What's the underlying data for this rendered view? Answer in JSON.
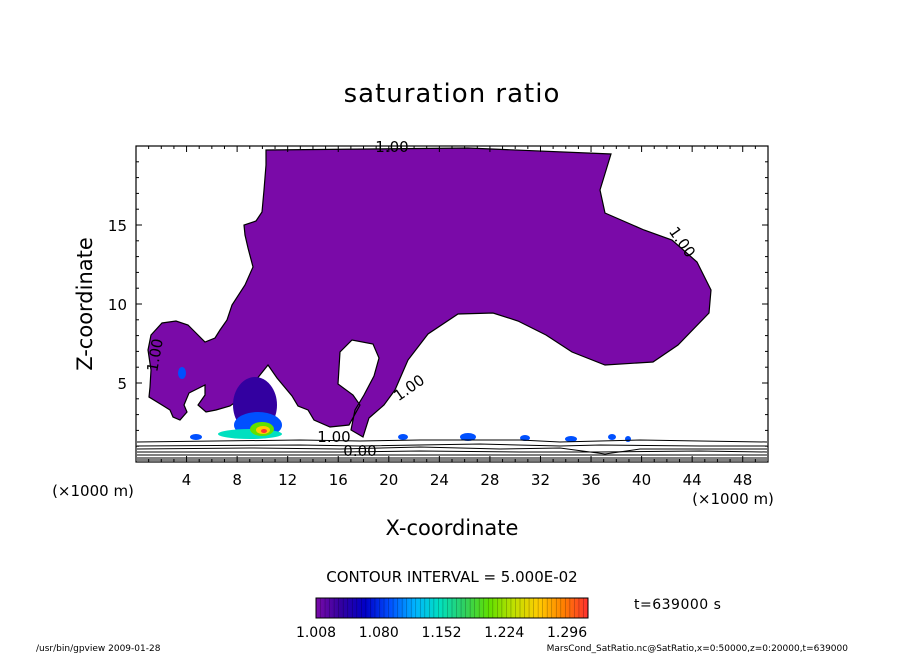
{
  "chart_data": {
    "type": "heatmap",
    "title": "saturation ratio",
    "xlabel": "X-coordinate",
    "ylabel": "Z-coordinate",
    "x_unit_left": "(×1000 m)",
    "x_unit_right": "(×1000 m)",
    "xlim": [
      0,
      50
    ],
    "ylim": [
      0,
      20
    ],
    "x_ticks": [
      "4",
      "8",
      "12",
      "16",
      "20",
      "24",
      "28",
      "32",
      "36",
      "40",
      "44",
      "48"
    ],
    "y_ticks": [
      "5",
      "10",
      "15"
    ],
    "contour_labels": [
      "1.00",
      "1.00",
      "1.00",
      "1.00",
      "1.00",
      "0.00"
    ],
    "contour_interval_text": "CONTOUR INTERVAL = 5.000E-02",
    "colorbar": {
      "ticks": [
        "1.008",
        "1.080",
        "1.152",
        "1.224",
        "1.296"
      ],
      "min": 1.008,
      "max": 1.32,
      "colors": [
        "#7a0aa8",
        "#3300a0",
        "#0000c8",
        "#0050ff",
        "#00b4ff",
        "#00e0c0",
        "#30d060",
        "#60e000",
        "#c0e000",
        "#ffcc00",
        "#ff8000",
        "#ff3030"
      ]
    },
    "time_text": "t=639000 s",
    "filled_region_color": "#7a0aa8",
    "footer_left": "/usr/bin/gpview  2009-01-28",
    "footer_right": "MarsCond_SatRatio.nc@SatRatio,x=0:50000,z=0:20000,t=639000"
  }
}
